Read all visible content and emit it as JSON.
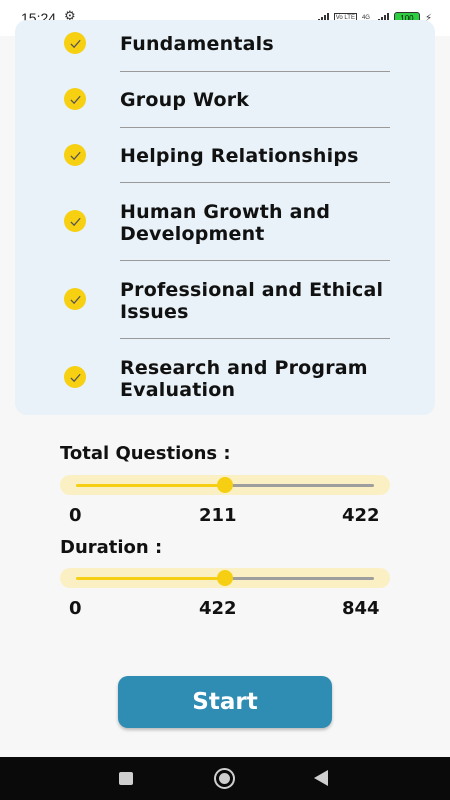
{
  "status_bar": {
    "time": "15:24",
    "network": "4G",
    "volte": "Vo LTE",
    "battery": "100"
  },
  "topics": [
    {
      "label": "Fundamentals",
      "checked": true
    },
    {
      "label": "Group Work",
      "checked": true
    },
    {
      "label": "Helping Relationships",
      "checked": true
    },
    {
      "label": "Human Growth and Development",
      "checked": true
    },
    {
      "label": "Professional and Ethical Issues",
      "checked": true
    },
    {
      "label": "Research and Program Evaluation",
      "checked": true
    }
  ],
  "questions": {
    "label": "Total Questions :",
    "min": "0",
    "value": "211",
    "max": "422",
    "fraction": 0.5
  },
  "duration": {
    "label": "Duration :",
    "min": "0",
    "value": "422",
    "max": "844",
    "fraction": 0.5
  },
  "start_label": "Start",
  "colors": {
    "accent": "#f6cf12",
    "card_bg": "#e8f2f8",
    "button": "#2f8db4",
    "slider_bg": "#fbf0c4"
  },
  "icons": {
    "status_gear": "gear-icon",
    "topic_check": "check-icon",
    "nav_recent": "recent-apps-icon",
    "nav_home": "home-icon",
    "nav_back": "back-icon"
  }
}
